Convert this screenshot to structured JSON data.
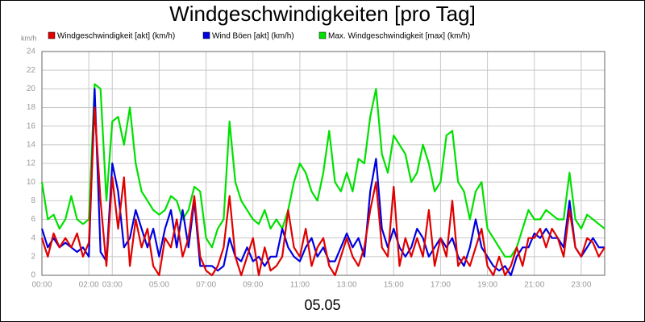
{
  "chart_data": {
    "type": "line",
    "title": "Windgeschwindigkeiten [pro Tag]",
    "subtitle": "05.05",
    "y_unit": "km/h",
    "x": [
      0,
      0.25,
      0.5,
      0.75,
      1,
      1.25,
      1.5,
      1.75,
      2,
      2.25,
      2.5,
      2.75,
      3,
      3.25,
      3.5,
      3.75,
      4,
      4.25,
      4.5,
      4.75,
      5,
      5.25,
      5.5,
      5.75,
      6,
      6.25,
      6.5,
      6.75,
      7,
      7.25,
      7.5,
      7.75,
      8,
      8.25,
      8.5,
      8.75,
      9,
      9.25,
      9.5,
      9.75,
      10,
      10.25,
      10.5,
      10.75,
      11,
      11.25,
      11.5,
      11.75,
      12,
      12.25,
      12.5,
      12.75,
      13,
      13.25,
      13.5,
      13.75,
      14,
      14.25,
      14.5,
      14.75,
      15,
      15.25,
      15.5,
      15.75,
      16,
      16.25,
      16.5,
      16.75,
      17,
      17.25,
      17.5,
      17.75,
      18,
      18.25,
      18.5,
      18.75,
      19,
      19.25,
      19.5,
      19.75,
      20,
      20.25,
      20.5,
      20.75,
      21,
      21.25,
      21.5,
      21.75,
      22,
      22.25,
      22.5,
      22.75,
      23,
      23.25,
      23.5,
      23.75,
      24
    ],
    "series": [
      {
        "name": "Windgeschwindigkeit [akt] (km/h)",
        "color": "#e00000",
        "values": [
          4,
          2,
          4.5,
          3,
          4,
          3,
          4.5,
          2,
          3.5,
          18,
          8,
          1,
          10.5,
          5,
          10.5,
          1,
          6,
          3,
          5,
          1,
          0,
          4,
          3,
          6,
          2,
          4,
          8.5,
          2,
          0.5,
          0,
          1,
          3,
          8.5,
          2,
          0,
          2,
          4,
          0,
          3,
          0.5,
          1,
          2,
          7,
          3,
          2,
          5,
          1,
          3,
          4,
          1,
          0,
          2,
          4,
          2,
          1,
          3,
          7,
          10,
          3,
          2,
          9.5,
          1,
          4,
          2,
          4,
          2,
          7,
          1,
          4,
          2,
          8,
          1,
          2,
          1,
          3,
          5,
          1,
          0,
          2,
          0,
          1,
          3,
          1,
          4,
          4,
          5,
          3,
          5,
          4,
          2,
          7,
          3,
          2,
          4,
          3.5,
          2,
          3
        ]
      },
      {
        "name": "Wind Böen [akt] (km/h)",
        "color": "#0000e0",
        "values": [
          5,
          3,
          4,
          3,
          3.5,
          3,
          2.5,
          3,
          2,
          20,
          2.5,
          1.5,
          12,
          9,
          3,
          4,
          7,
          5,
          3,
          5,
          2,
          5,
          7,
          3,
          7,
          3,
          8,
          1,
          1,
          1,
          0.5,
          1,
          4,
          2,
          1.5,
          3,
          1.5,
          2,
          1,
          2,
          2,
          5,
          3,
          2,
          1.5,
          3,
          4,
          2,
          3,
          1.5,
          1.5,
          3,
          4.5,
          3,
          4,
          2,
          9,
          12.5,
          5,
          3,
          5,
          3,
          2,
          3,
          5,
          4,
          2,
          3,
          4,
          3,
          4,
          2,
          1,
          3,
          6,
          3,
          2,
          1,
          0.5,
          1,
          0,
          2,
          3,
          3,
          4.5,
          4,
          5,
          4,
          4,
          3,
          8,
          3,
          2,
          3,
          4,
          3,
          3
        ]
      },
      {
        "name": "Max. Windgeschwindigkeit [max] (km/h)",
        "color": "#00e000",
        "values": [
          10,
          6,
          6.5,
          5,
          6,
          8.5,
          6,
          5.5,
          6,
          20.5,
          20,
          8,
          16.5,
          17,
          14,
          18,
          12,
          9,
          8,
          7,
          6.5,
          7,
          8.5,
          8,
          6,
          7,
          9.5,
          9,
          4,
          3,
          5,
          6,
          16.5,
          10,
          8,
          7,
          6,
          5.5,
          7,
          5,
          6,
          5,
          7,
          10,
          12,
          11,
          9,
          8,
          11,
          15.5,
          10,
          9,
          11,
          9,
          12.5,
          12,
          17,
          20,
          13,
          11,
          15,
          14,
          13,
          10,
          11,
          14,
          12,
          9,
          10,
          15,
          15.5,
          10,
          9,
          6,
          9,
          10,
          5,
          4,
          3,
          2,
          2,
          3,
          5,
          7,
          6,
          6,
          7,
          6.5,
          6,
          6,
          11,
          6,
          5,
          6.5,
          6,
          5.5,
          5
        ]
      }
    ],
    "xlim": [
      0,
      24
    ],
    "xticks": [
      {
        "value": 0,
        "label": "00:00"
      },
      {
        "value": 2,
        "label": "02:00"
      },
      {
        "value": 3,
        "label": "03:00"
      },
      {
        "value": 5,
        "label": "05:00"
      },
      {
        "value": 7,
        "label": "07:00"
      },
      {
        "value": 9,
        "label": "09:00"
      },
      {
        "value": 11,
        "label": "11:00"
      },
      {
        "value": 13,
        "label": "13:00"
      },
      {
        "value": 15,
        "label": "15:00"
      },
      {
        "value": 17,
        "label": "17:00"
      },
      {
        "value": 19,
        "label": "19:00"
      },
      {
        "value": 21,
        "label": "21:00"
      },
      {
        "value": 23,
        "label": "23:00"
      }
    ],
    "ylim": [
      0,
      24
    ],
    "yticks": [
      0,
      2,
      4,
      6,
      8,
      10,
      12,
      14,
      16,
      18,
      20,
      22,
      24
    ],
    "grid": true
  }
}
